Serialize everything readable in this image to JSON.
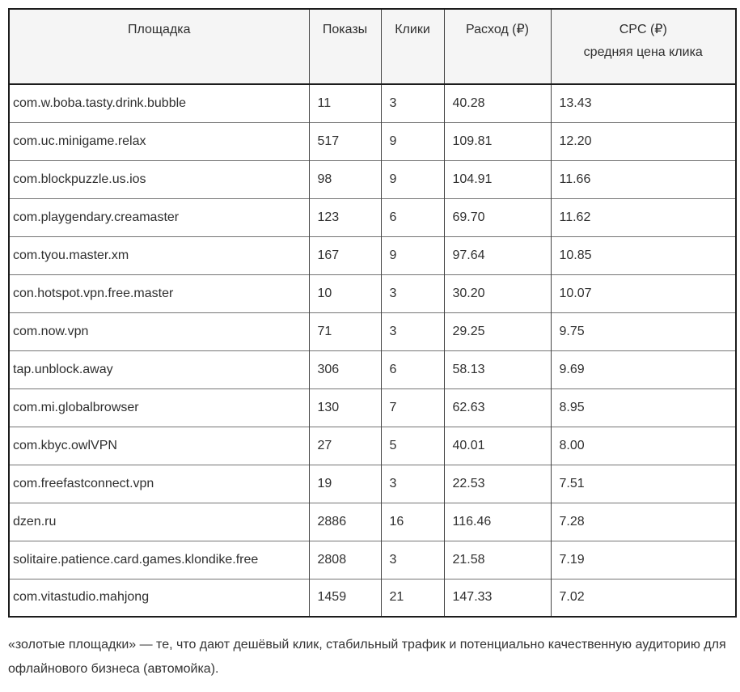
{
  "table": {
    "headers": {
      "platform": "Площадка",
      "impressions": "Показы",
      "clicks": "Клики",
      "spend": "Расход (₽)",
      "cpc_title": "CPC (₽)",
      "cpc_subtitle": "средняя цена клика"
    },
    "rows": [
      {
        "platform": "com.w.boba.tasty.drink.bubble",
        "impressions": "11",
        "clicks": "3",
        "spend": "40.28",
        "cpc": "13.43"
      },
      {
        "platform": "com.uc.minigame.relax",
        "impressions": "517",
        "clicks": "9",
        "spend": "109.81",
        "cpc": "12.20"
      },
      {
        "platform": "com.blockpuzzle.us.ios",
        "impressions": "98",
        "clicks": "9",
        "spend": "104.91",
        "cpc": "11.66"
      },
      {
        "platform": "com.playgendary.creamaster",
        "impressions": "123",
        "clicks": "6",
        "spend": "69.70",
        "cpc": "11.62"
      },
      {
        "platform": "com.tyou.master.xm",
        "impressions": "167",
        "clicks": "9",
        "spend": "97.64",
        "cpc": "10.85"
      },
      {
        "platform": "con.hotspot.vpn.free.master",
        "impressions": "10",
        "clicks": "3",
        "spend": "30.20",
        "cpc": "10.07"
      },
      {
        "platform": "com.now.vpn",
        "impressions": "71",
        "clicks": "3",
        "spend": "29.25",
        "cpc": "9.75"
      },
      {
        "platform": "tap.unblock.away",
        "impressions": "306",
        "clicks": "6",
        "spend": "58.13",
        "cpc": "9.69"
      },
      {
        "platform": "com.mi.globalbrowser",
        "impressions": "130",
        "clicks": "7",
        "spend": "62.63",
        "cpc": "8.95"
      },
      {
        "platform": "com.kbyc.owlVPN",
        "impressions": "27",
        "clicks": "5",
        "spend": "40.01",
        "cpc": "8.00"
      },
      {
        "platform": "com.freefastconnect.vpn",
        "impressions": "19",
        "clicks": "3",
        "spend": "22.53",
        "cpc": "7.51"
      },
      {
        "platform": "dzen.ru",
        "impressions": "2886",
        "clicks": "16",
        "spend": "116.46",
        "cpc": "7.28"
      },
      {
        "platform": "solitaire.patience.card.games.klondike.free",
        "impressions": "2808",
        "clicks": "3",
        "spend": "21.58",
        "cpc": "7.19"
      },
      {
        "platform": "com.vitastudio.mahjong",
        "impressions": "1459",
        "clicks": "21",
        "spend": "147.33",
        "cpc": "7.02"
      }
    ]
  },
  "footnote": "«золотые площадки» — те, что дают дешёвый клик, стабильный трафик и потенциально качественную аудиторию для офлайнового бизнеса (автомойка)."
}
